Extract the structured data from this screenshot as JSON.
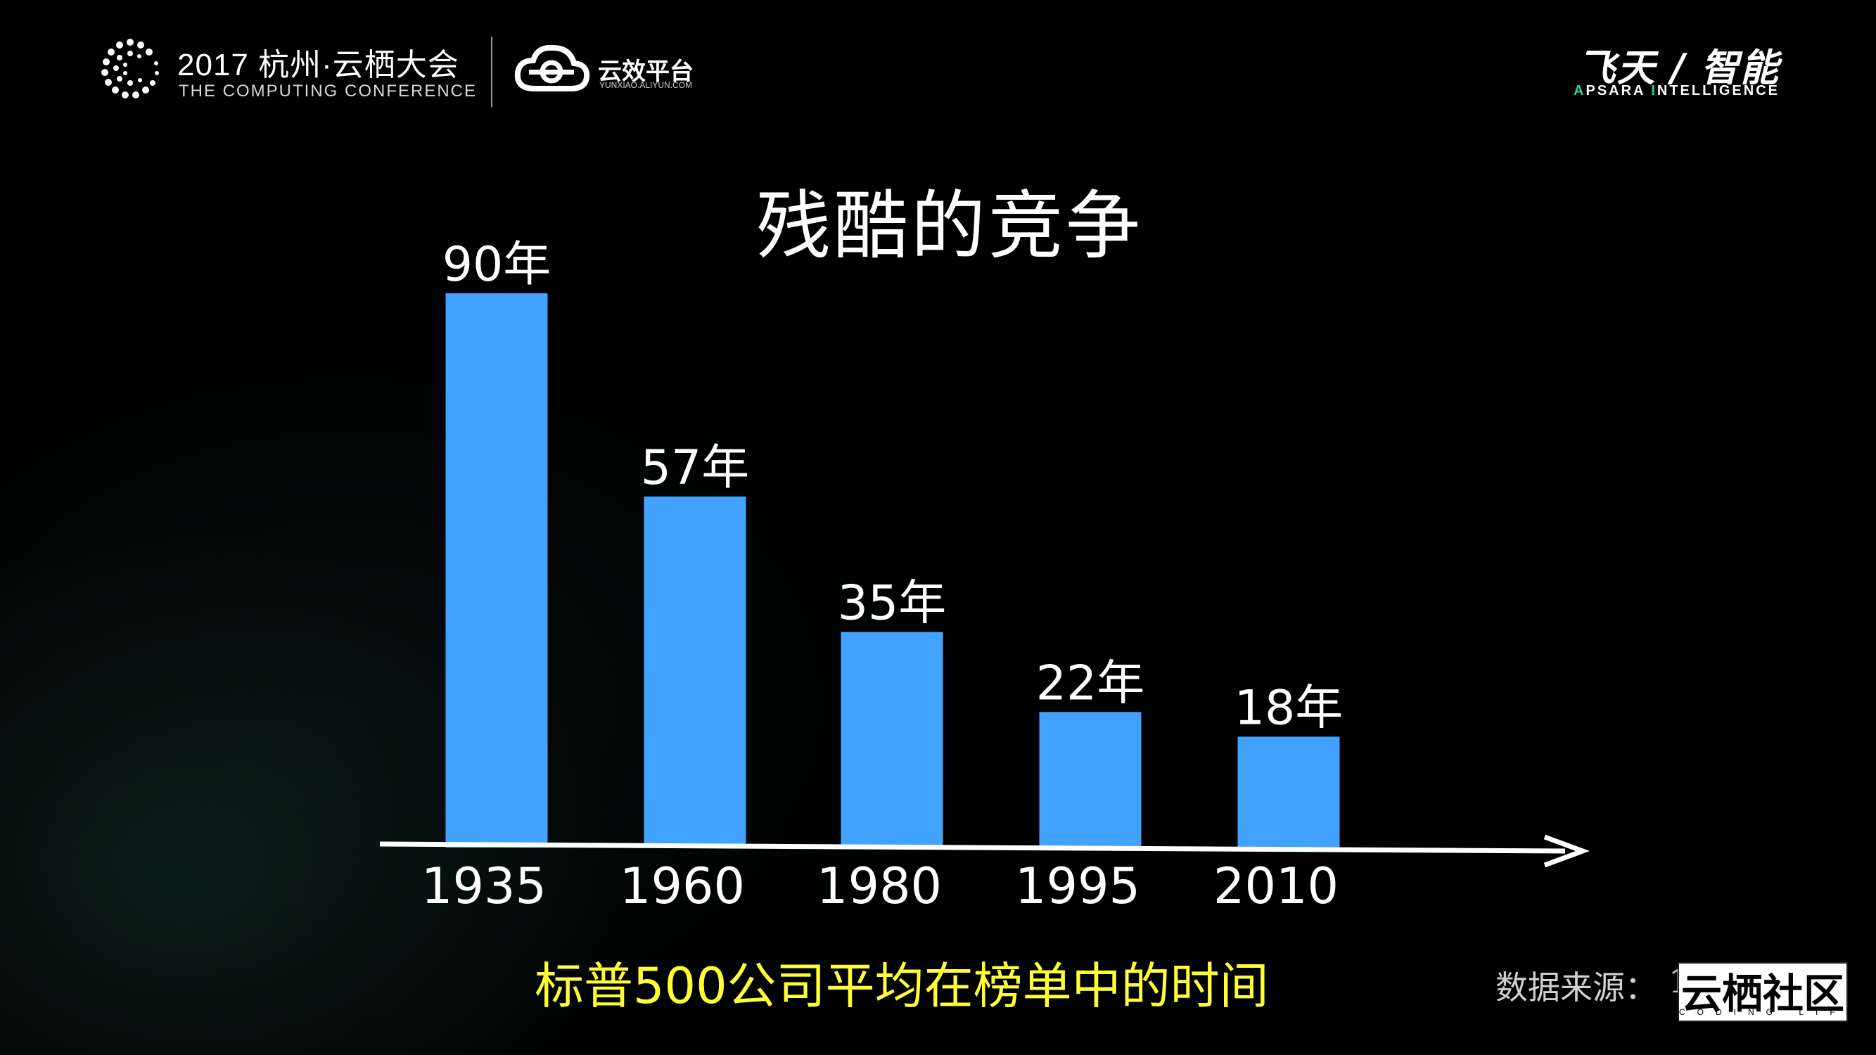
{
  "header": {
    "conference_title": "2017 杭州·云栖大会",
    "conference_subtitle": "THE COMPUTING CONFERENCE",
    "yunxiao_name": "云效平台",
    "yunxiao_url": "YUNXIAO.ALIYUN.COM",
    "apsara_cn": "飞天 / 智能",
    "apsara_en_a": "A",
    "apsara_en_psara": "PSARA ",
    "apsara_en_i": "I",
    "apsara_en_ntelligence": "NTELLIGENCE"
  },
  "footer": {
    "caption": "标普500公司平均在榜单中的时间",
    "source_label": "数据来源：",
    "source_value": "1",
    "community_name": "云栖社区",
    "community_tagline": "CODING LIFE"
  },
  "colors": {
    "bar": "#42a2ff",
    "caption": "#ffff33",
    "background": "#000000",
    "accent": "#27d3a4"
  },
  "chart_data": {
    "type": "bar",
    "title": "残酷的竞争",
    "categories": [
      "1935",
      "1960",
      "1980",
      "1995",
      "2010"
    ],
    "values": [
      90,
      57,
      35,
      22,
      18
    ],
    "data_labels": [
      "90年",
      "57年",
      "35年",
      "22年",
      "18年"
    ],
    "unit": "年",
    "ylim": [
      0,
      90
    ],
    "grid": false,
    "legend": "none"
  }
}
